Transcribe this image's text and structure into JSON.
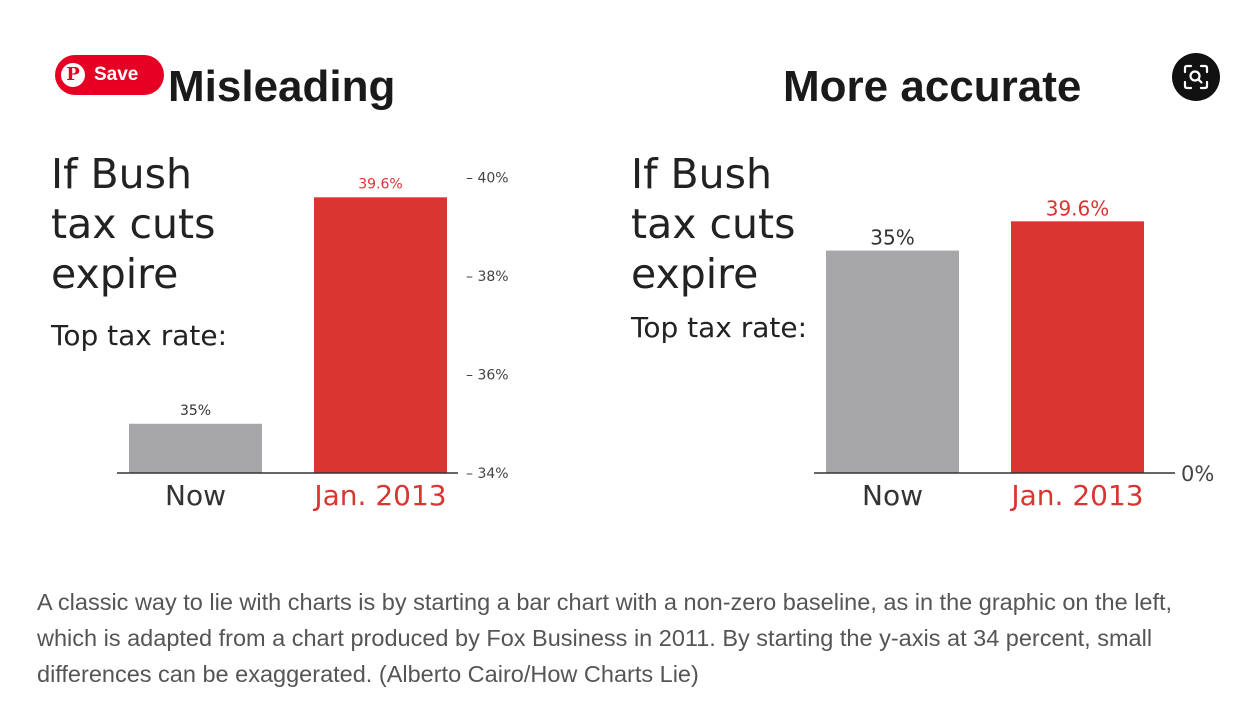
{
  "save_button": {
    "label": "Save",
    "icon": "pinterest-logo-icon"
  },
  "lens_button": {
    "icon": "visual-search-icon"
  },
  "chart_data": [
    {
      "type": "bar",
      "panel_title": "Misleading",
      "title_lines": [
        "If Bush",
        "tax cuts",
        "expire"
      ],
      "subtitle": "Top tax rate:",
      "categories": [
        "Now",
        "Jan. 2013"
      ],
      "values": [
        35,
        39.6
      ],
      "value_labels": [
        "35%",
        "39.6%"
      ],
      "colors": [
        "#a7a7aa",
        "#d93531"
      ],
      "label_colors": [
        "#333333",
        "#d93531"
      ],
      "ylim": [
        34,
        40.5
      ],
      "baseline": 34,
      "yticks": [
        {
          "value": 40,
          "label": "– 40%"
        },
        {
          "value": 38,
          "label": "– 38%"
        },
        {
          "value": 36,
          "label": "– 36%"
        },
        {
          "value": 34,
          "label": "– 34%"
        }
      ],
      "axis_side": "right"
    },
    {
      "type": "bar",
      "panel_title": "More accurate",
      "title_lines": [
        "If Bush",
        "tax cuts",
        "expire"
      ],
      "subtitle": "Top tax rate:",
      "categories": [
        "Now",
        "Jan. 2013"
      ],
      "values": [
        35,
        39.6
      ],
      "value_labels": [
        "35%",
        "39.6%"
      ],
      "colors": [
        "#a7a7aa",
        "#d93531"
      ],
      "label_colors": [
        "#333333",
        "#d93531"
      ],
      "ylim": [
        0,
        45
      ],
      "baseline": 0,
      "yticks": [
        {
          "value": 0,
          "label": "0%"
        }
      ],
      "axis_side": "right"
    }
  ],
  "caption": "A classic way to lie with charts is by starting a bar chart with a non-zero baseline, as in the graphic on the left, which is adapted from a chart produced by Fox Business in 2011. By starting the y-axis at 34 percent, small differences can be exaggerated. (Alberto Cairo/How Charts Lie)"
}
